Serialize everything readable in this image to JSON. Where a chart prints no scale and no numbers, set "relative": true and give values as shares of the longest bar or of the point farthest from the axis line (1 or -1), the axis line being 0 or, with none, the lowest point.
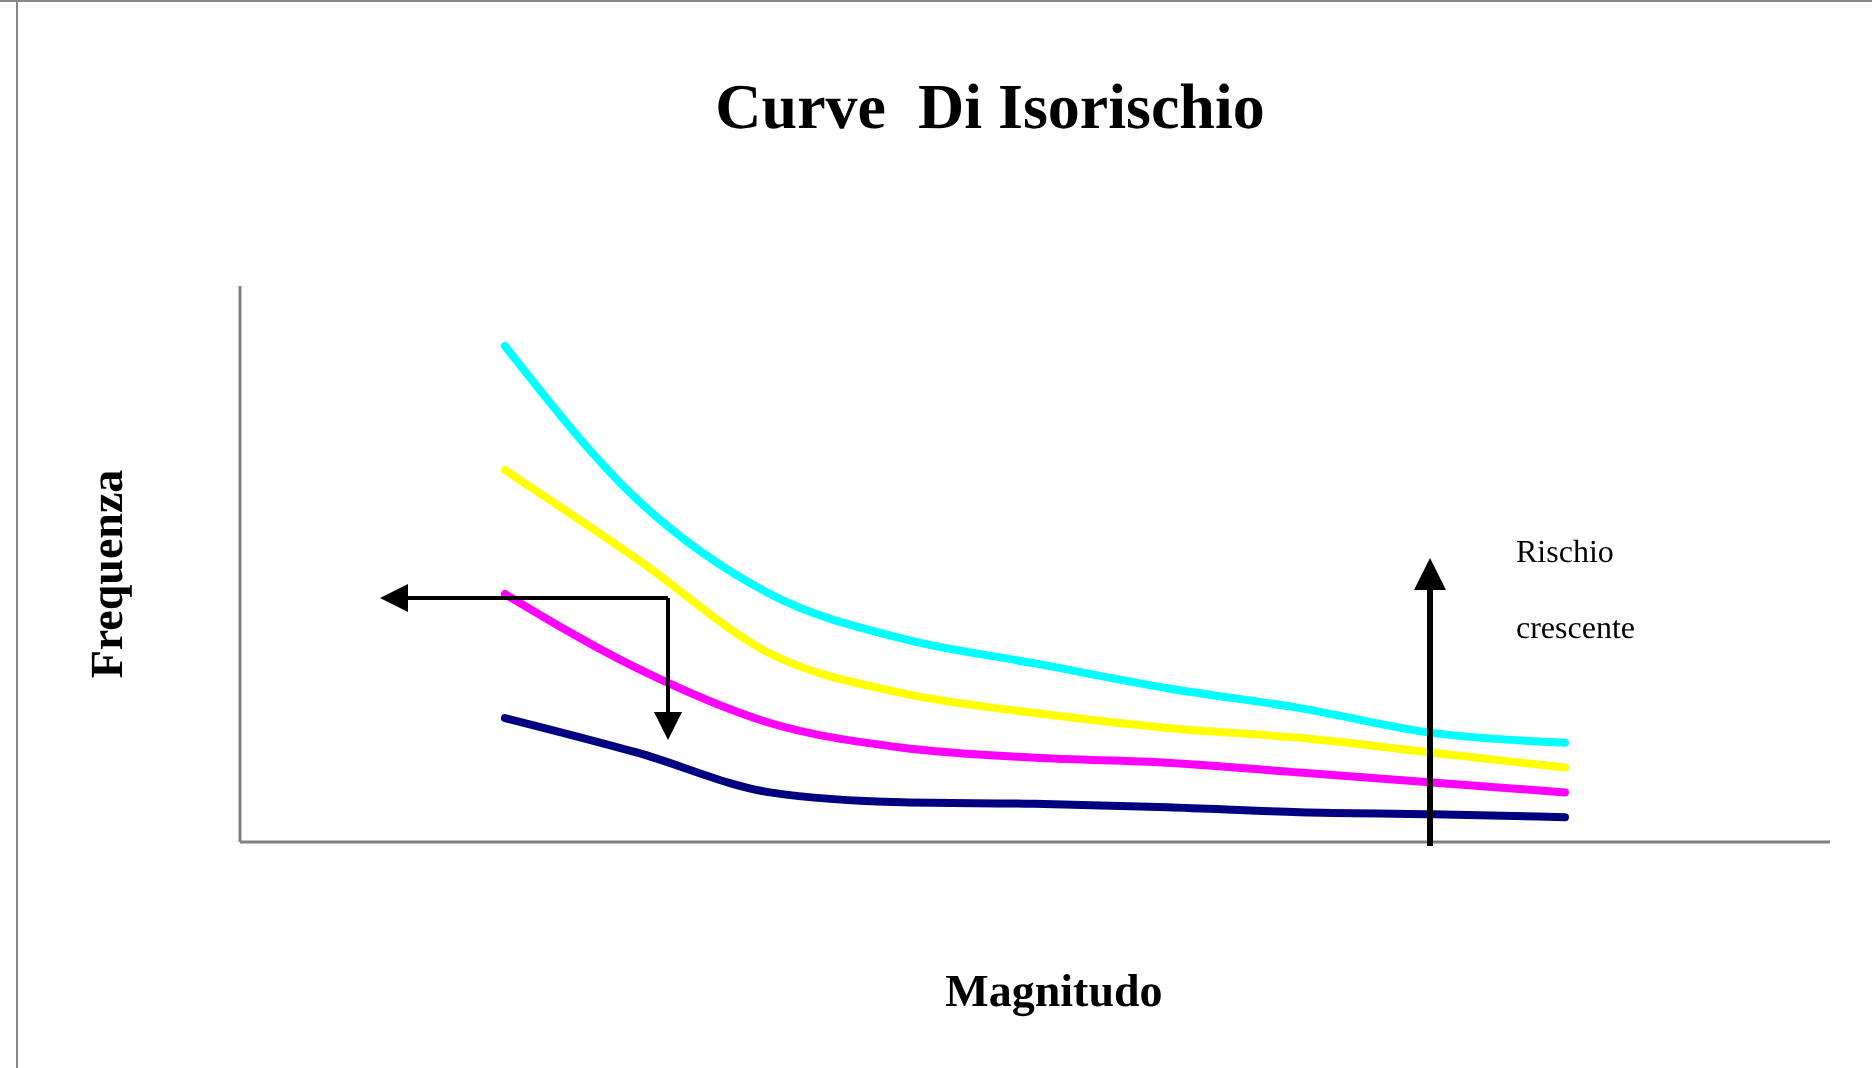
{
  "chart_data": {
    "type": "line",
    "title": "Curve  Di Isorischio",
    "xlabel": "Magnitudo",
    "ylabel": "Frequenza",
    "relative": true,
    "annotations": [
      "Rischio crescente"
    ],
    "categories": [
      null,
      null,
      null,
      null,
      null,
      null,
      null,
      null,
      null,
      null,
      null,
      null,
      null
    ],
    "series": [
      {
        "color": "#00ffff",
        "values": [
          null,
          null,
          1.0,
          0.69,
          0.5,
          0.41,
          0.36,
          0.31,
          0.27,
          0.22,
          0.2,
          null,
          null
        ]
      },
      {
        "color": "#ffff00",
        "values": [
          null,
          null,
          0.75,
          0.57,
          0.38,
          0.3,
          0.26,
          0.23,
          0.21,
          0.18,
          0.15,
          null,
          null
        ]
      },
      {
        "color": "#ff00ff",
        "values": [
          null,
          null,
          0.5,
          0.35,
          0.24,
          0.19,
          0.17,
          0.16,
          0.14,
          0.12,
          0.1,
          null,
          null
        ]
      },
      {
        "color": "#000080",
        "values": [
          null,
          null,
          0.25,
          0.18,
          0.1,
          0.08,
          0.077,
          0.07,
          0.06,
          0.056,
          0.05,
          null,
          null
        ]
      }
    ]
  }
}
